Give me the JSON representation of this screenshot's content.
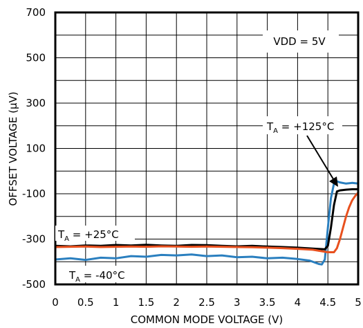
{
  "chart_data": {
    "type": "line",
    "xlabel": "COMMON MODE VOLTAGE (V)",
    "ylabel": "OFFSET VOLTAGE (µV)",
    "xlim": [
      0,
      5
    ],
    "ylim": [
      -500,
      700
    ],
    "xticks": [
      "0",
      "0.5",
      "1",
      "1.5",
      "2",
      "2.5",
      "3",
      "3.5",
      "4",
      "4.5",
      "5"
    ],
    "yticks": [
      "700",
      "500",
      "300",
      "100",
      "-100",
      "-300",
      "-500"
    ],
    "grid": true,
    "annotation_vdd": "VDD = 5V",
    "colors": {
      "blue": "#2a7fbf",
      "black": "#000000",
      "orange": "#e8501e"
    },
    "series": [
      {
        "name": "TA = -40°C",
        "label_main": "T",
        "label_sub": "A",
        "label_rest": " = -40°C",
        "color": "#2a7fbf",
        "x": [
          0,
          0.25,
          0.5,
          0.75,
          1.0,
          1.25,
          1.5,
          1.75,
          2.0,
          2.25,
          2.5,
          2.75,
          3.0,
          3.25,
          3.5,
          3.75,
          4.0,
          4.2,
          4.35,
          4.4,
          4.45,
          4.5,
          4.55,
          4.6,
          4.65,
          4.7,
          4.8,
          4.9,
          5.0
        ],
        "y": [
          -390,
          -385,
          -392,
          -382,
          -385,
          -375,
          -378,
          -370,
          -372,
          -368,
          -375,
          -372,
          -380,
          -378,
          -385,
          -382,
          -388,
          -395,
          -410,
          -412,
          -390,
          -250,
          -120,
          -55,
          -45,
          -50,
          -55,
          -52,
          -55
        ]
      },
      {
        "name": "TA = +25°C",
        "label_main": "T",
        "label_sub": "A",
        "label_rest": " = +25°C",
        "color": "#000000",
        "x": [
          0,
          0.25,
          0.5,
          0.75,
          1.0,
          1.25,
          1.5,
          1.75,
          2.0,
          2.25,
          2.5,
          2.75,
          3.0,
          3.25,
          3.5,
          3.75,
          4.0,
          4.25,
          4.45,
          4.5,
          4.55,
          4.6,
          4.65,
          4.7,
          4.8,
          4.9,
          5.0
        ],
        "y": [
          -330,
          -332,
          -328,
          -330,
          -326,
          -328,
          -325,
          -328,
          -330,
          -326,
          -327,
          -330,
          -332,
          -330,
          -333,
          -335,
          -338,
          -342,
          -345,
          -330,
          -250,
          -150,
          -90,
          -85,
          -82,
          -80,
          -80
        ]
      },
      {
        "name": "TA = +125°C",
        "label_main": "T",
        "label_sub": "A",
        "label_rest": " = +125°C",
        "color": "#e8501e",
        "x": [
          0,
          0.25,
          0.5,
          0.75,
          1.0,
          1.25,
          1.5,
          1.75,
          2.0,
          2.25,
          2.5,
          2.75,
          3.0,
          3.25,
          3.5,
          3.75,
          4.0,
          4.25,
          4.5,
          4.6,
          4.65,
          4.7,
          4.75,
          4.8,
          4.85,
          4.9,
          4.95,
          5.0
        ],
        "y": [
          -335,
          -334,
          -333,
          -335,
          -334,
          -333,
          -334,
          -332,
          -333,
          -334,
          -333,
          -334,
          -335,
          -336,
          -338,
          -340,
          -343,
          -347,
          -358,
          -358,
          -340,
          -300,
          -250,
          -200,
          -160,
          -130,
          -110,
          -95
        ]
      }
    ]
  }
}
